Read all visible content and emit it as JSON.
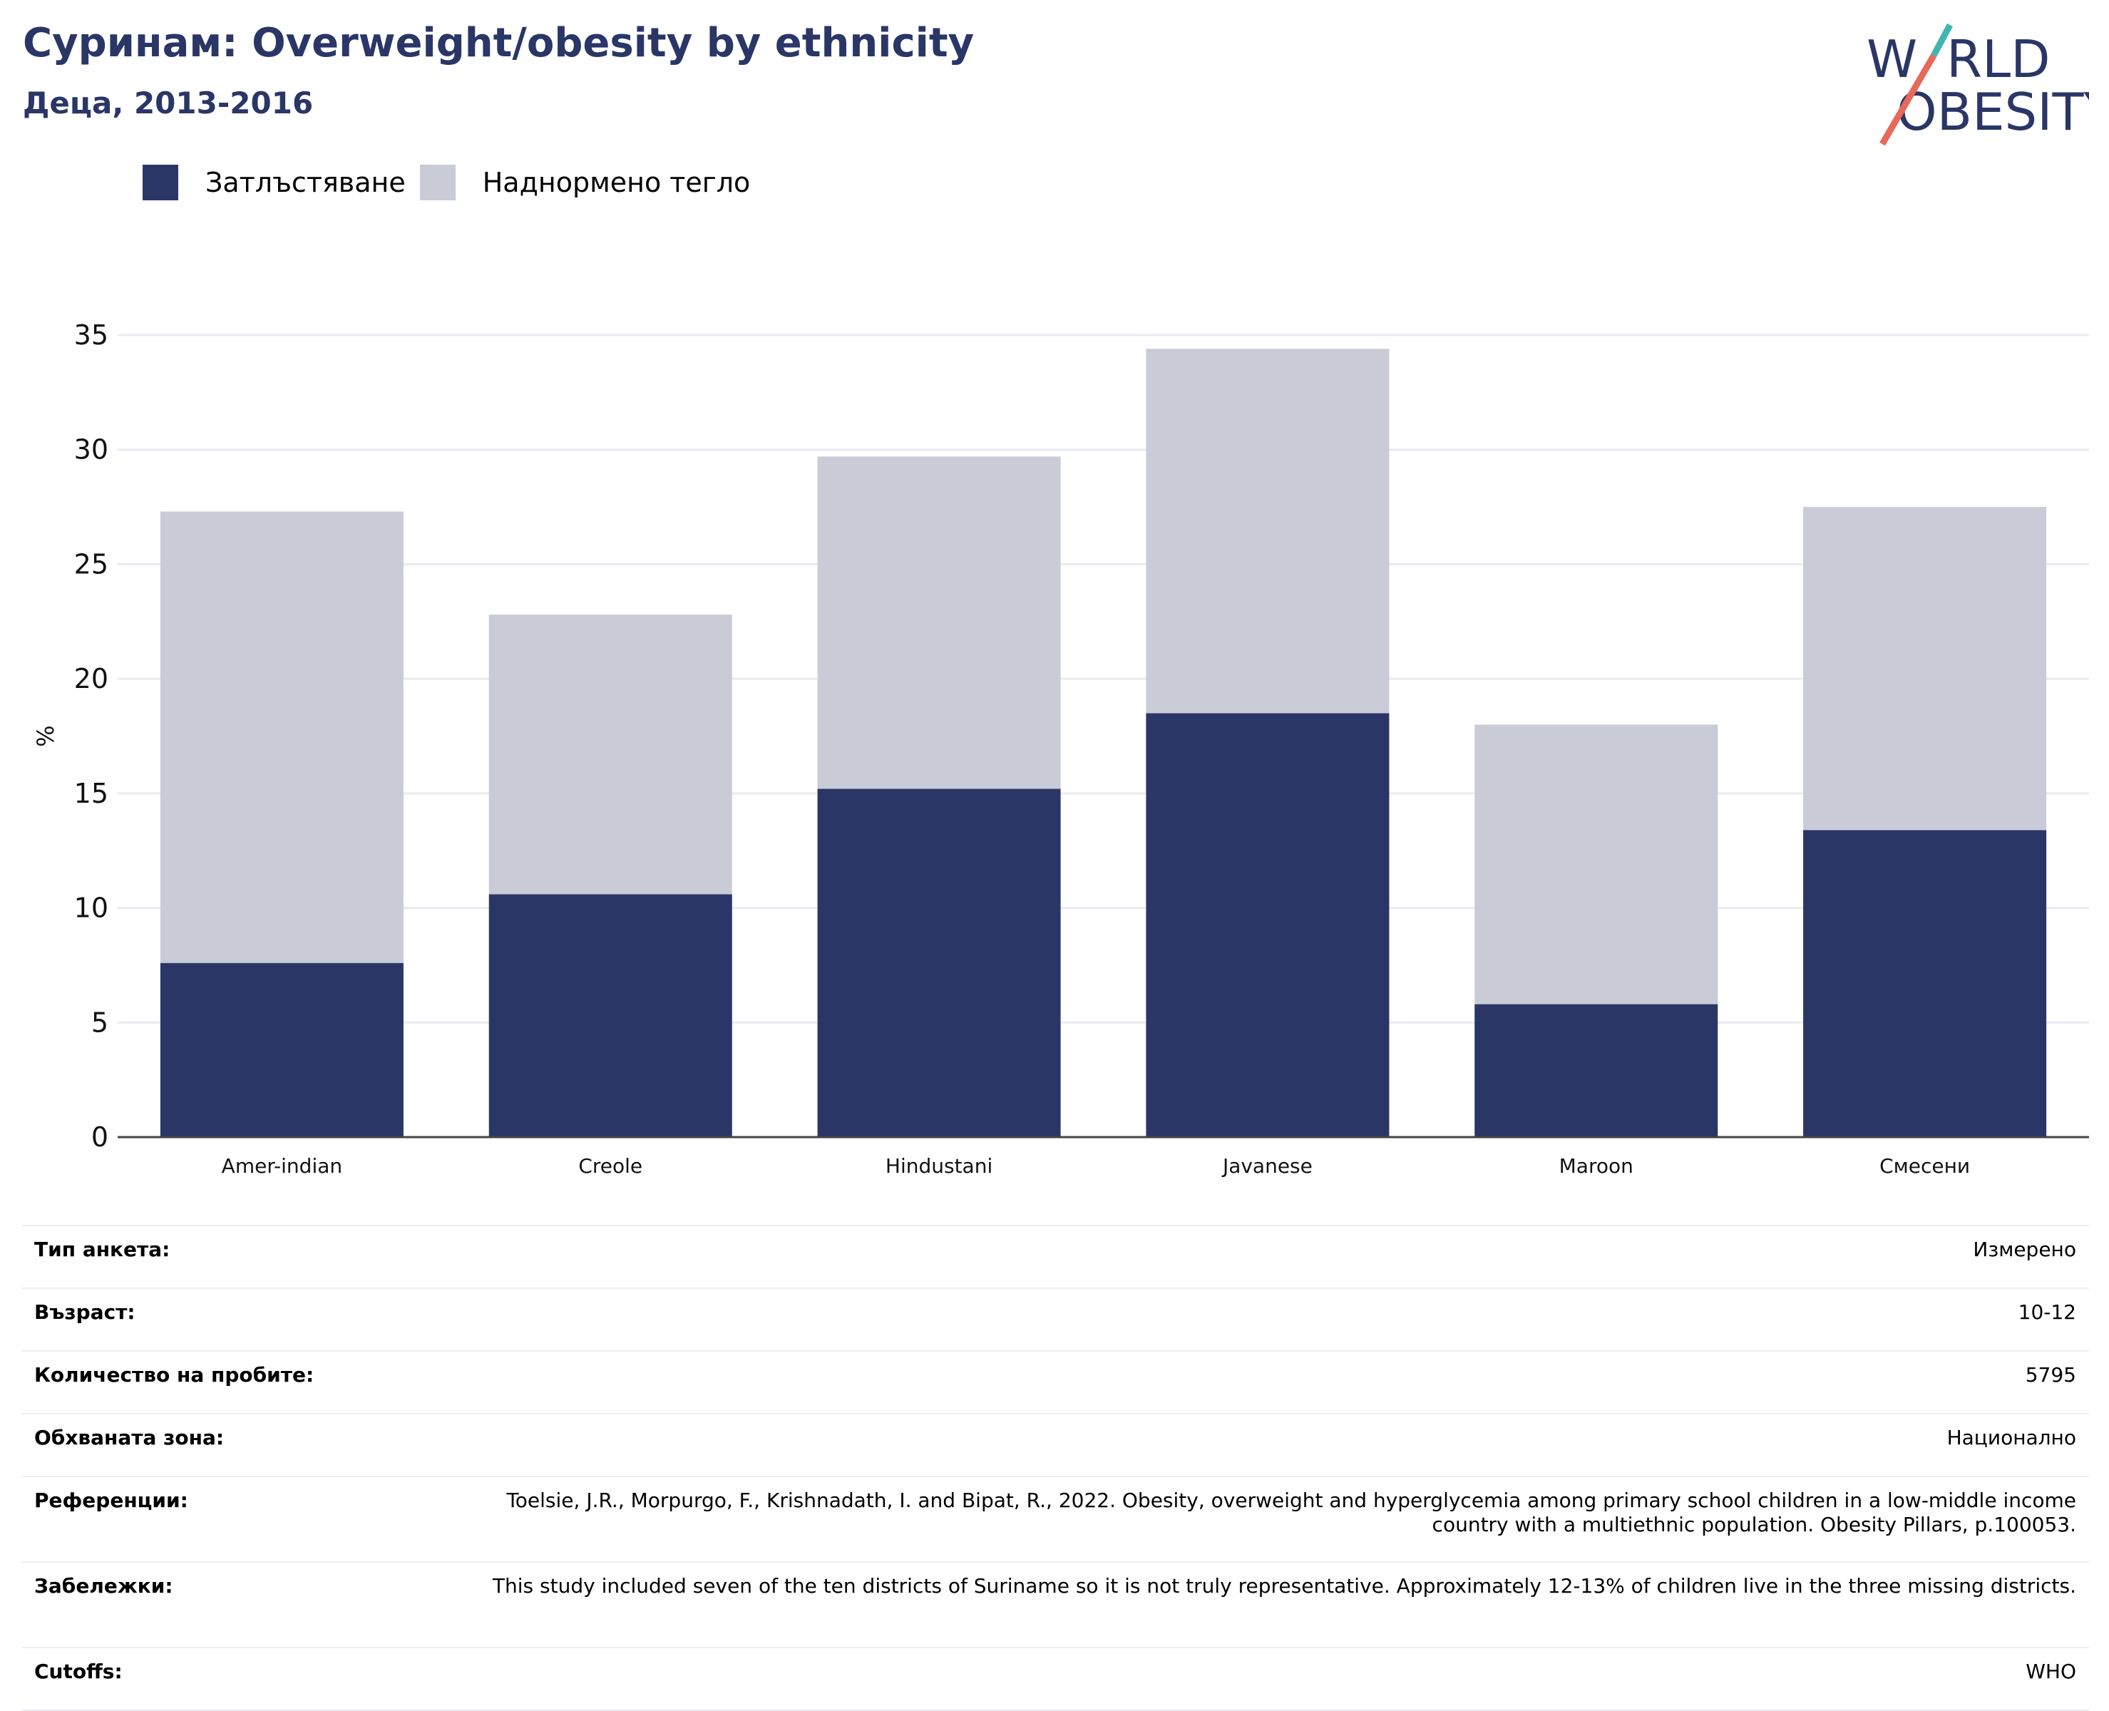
{
  "header": {
    "title": "Суринам: Overweight/obesity by ethnicity",
    "subtitle": "Деца, 2013-2016"
  },
  "logo": {
    "text": "WORLD OBESITY",
    "colors": {
      "navy": "#2a3666",
      "teal": "#3fb6b2",
      "coral": "#e8685a"
    }
  },
  "legend": [
    {
      "label": "Затлъстяване",
      "color": "#2a3666"
    },
    {
      "label": "Наднормено тегло",
      "color": "#c9cbd7"
    }
  ],
  "chart_data": {
    "type": "bar",
    "stacked": true,
    "categories": [
      "Amer-indian",
      "Creole",
      "Hindustani",
      "Javanese",
      "Maroon",
      "Смесени"
    ],
    "series": [
      {
        "name": "Затлъстяване",
        "color": "#2a3666",
        "values": [
          7.6,
          10.6,
          15.2,
          18.5,
          5.8,
          13.4
        ]
      },
      {
        "name": "Наднормено тегло",
        "color": "#c9cbd7",
        "values": [
          19.7,
          12.2,
          14.5,
          15.9,
          12.2,
          14.1
        ]
      }
    ],
    "ylabel": "%",
    "xlabel": "",
    "ylim": [
      0,
      35
    ],
    "yticks": [
      0,
      5,
      10,
      15,
      20,
      25,
      30,
      35
    ],
    "grid": true,
    "legend_position": "top-left"
  },
  "metadata": [
    {
      "label": "Тип анкета:",
      "value": "Измерено"
    },
    {
      "label": "Възраст:",
      "value": "10-12"
    },
    {
      "label": "Количество на пробите:",
      "value": "5795"
    },
    {
      "label": "Обхваната зона:",
      "value": "Национално"
    },
    {
      "label": "Референции:",
      "value": "Toelsie, J.R., Morpurgo, F., Krishnadath, I. and Bipat, R., 2022. Obesity, overweight and hyperglycemia among primary school children in a low-middle income country with a multiethnic population. Obesity Pillars, p.100053."
    },
    {
      "label": "Забележки:",
      "value": "This study included seven of the ten districts of Suriname so it is not truly representative. Approximately 12-13% of children live in the three missing districts."
    },
    {
      "label": "Cutoffs:",
      "value": "WHO"
    }
  ]
}
